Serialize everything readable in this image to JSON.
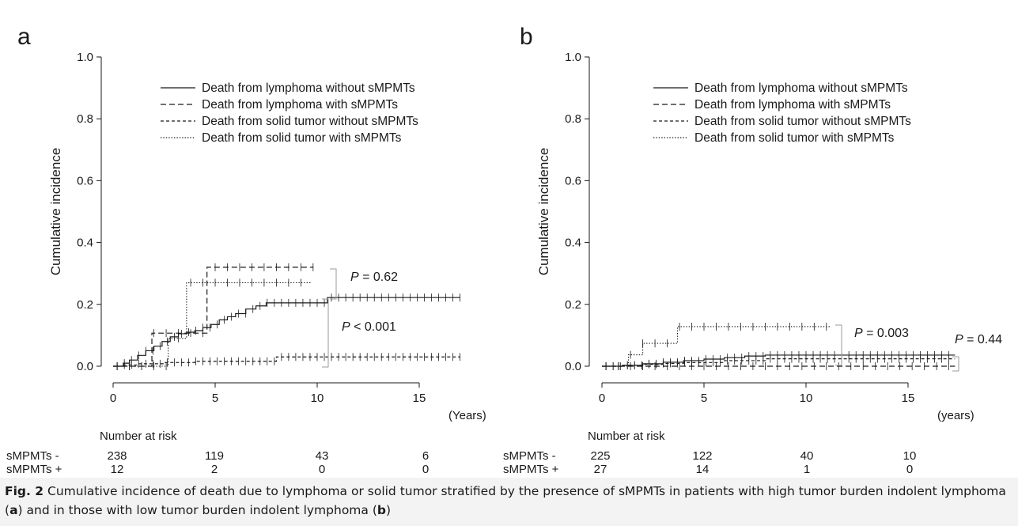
{
  "figure": {
    "caption_label": "Fig. 2",
    "caption_parts": [
      {
        "text": "Cumulative incidence of death due to lymphoma or solid tumor stratified by the presence of sMPMTs in patients with high tumor burden indolent lymphoma (",
        "bold": false
      },
      {
        "text": "a",
        "bold": true
      },
      {
        "text": ") and in those with low tumor burden indolent lymphoma (",
        "bold": false
      },
      {
        "text": "b",
        "bold": true
      },
      {
        "text": ")",
        "bold": false
      }
    ]
  },
  "chart_data": [
    {
      "type": "line",
      "panel_label": "a",
      "ylabel": "Cumulative incidence",
      "x_unit_label": "(Years)",
      "xlim": [
        0,
        17.5
      ],
      "ylim": [
        0,
        1.0
      ],
      "x_ticks": [
        "0",
        "5",
        "10",
        "15"
      ],
      "y_ticks": [
        "0.0",
        "0.2",
        "0.4",
        "0.6",
        "0.8",
        "1.0"
      ],
      "legend_position": "top-center",
      "series": [
        {
          "name": "Death from lymphoma without sMPMTs",
          "style": "solid",
          "x": [
            0,
            0.5,
            0.8,
            1.2,
            1.6,
            2.0,
            2.4,
            2.8,
            3.2,
            3.6,
            4.0,
            4.4,
            4.8,
            5.2,
            5.6,
            6.0,
            6.5,
            7.0,
            7.5,
            8.0,
            8.5,
            9.0,
            9.5,
            10.0,
            10.5,
            17.0
          ],
          "y": [
            0,
            0.01,
            0.02,
            0.035,
            0.05,
            0.065,
            0.08,
            0.095,
            0.105,
            0.11,
            0.115,
            0.125,
            0.135,
            0.15,
            0.16,
            0.17,
            0.185,
            0.195,
            0.205,
            0.205,
            0.205,
            0.205,
            0.205,
            0.205,
            0.222,
            0.222
          ]
        },
        {
          "name": "Death from lymphoma with sMPMTs",
          "style": "dash",
          "x": [
            0,
            1.9,
            1.9,
            4.6,
            4.6,
            9.8
          ],
          "y": [
            0,
            0,
            0.107,
            0.107,
            0.32,
            0.32
          ]
        },
        {
          "name": "Death from solid tumor without sMPMTs",
          "style": "shortdash",
          "x": [
            0,
            0.5,
            1.2,
            2.5,
            4.0,
            8.0,
            8.0,
            17.0
          ],
          "y": [
            0,
            0.004,
            0.008,
            0.012,
            0.016,
            0.02,
            0.03,
            0.03
          ]
        },
        {
          "name": "Death from solid tumor with sMPMTs",
          "style": "dot",
          "x": [
            0,
            2.7,
            2.7,
            3.6,
            3.6,
            9.7
          ],
          "y": [
            0,
            0,
            0.09,
            0.09,
            0.27,
            0.27
          ]
        }
      ],
      "annotations": [
        {
          "p_prefix": "P",
          "p_rest": " = 0.62"
        },
        {
          "p_prefix": "P",
          "p_rest": " < 0.001"
        }
      ],
      "risk_table": {
        "title": "Number at risk",
        "rows": [
          {
            "label": "sMPMTs -",
            "values": [
              "238",
              "119",
              "43",
              "6"
            ]
          },
          {
            "label": "sMPMTs +",
            "values": [
              "12",
              "2",
              "0",
              "0"
            ]
          }
        ]
      }
    },
    {
      "type": "line",
      "panel_label": "b",
      "ylabel": "Cumulative incidence",
      "x_unit_label": "(years)",
      "xlim": [
        0,
        17.5
      ],
      "ylim": [
        0,
        1.0
      ],
      "x_ticks": [
        "0",
        "5",
        "10",
        "15"
      ],
      "y_ticks": [
        "0.0",
        "0.2",
        "0.4",
        "0.6",
        "0.8",
        "1.0"
      ],
      "legend_position": "top-center",
      "series": [
        {
          "name": "Death from lymphoma without sMPMTs",
          "style": "solid",
          "x": [
            0,
            1.0,
            2.0,
            3.0,
            4.0,
            5.0,
            6.0,
            7.0,
            8.0,
            17.3
          ],
          "y": [
            0,
            0.003,
            0.008,
            0.013,
            0.018,
            0.023,
            0.028,
            0.033,
            0.036,
            0.036
          ]
        },
        {
          "name": "Death from lymphoma with sMPMTs",
          "style": "dash",
          "x": [
            0,
            17.3
          ],
          "y": [
            0,
            0
          ]
        },
        {
          "name": "Death from solid tumor without sMPMTs",
          "style": "shortdash",
          "x": [
            0,
            1.0,
            2.0,
            3.0,
            4.0,
            6.0,
            8.0,
            17.3
          ],
          "y": [
            0,
            0.003,
            0.006,
            0.009,
            0.012,
            0.018,
            0.024,
            0.024
          ]
        },
        {
          "name": "Death from solid tumor with sMPMTs",
          "style": "dot",
          "x": [
            0,
            1.3,
            1.3,
            2.0,
            2.0,
            3.7,
            3.7,
            11.2
          ],
          "y": [
            0,
            0,
            0.037,
            0.037,
            0.074,
            0.074,
            0.128,
            0.128
          ]
        }
      ],
      "annotations": [
        {
          "p_prefix": "P",
          "p_rest": " = 0.003"
        },
        {
          "p_prefix": "P",
          "p_rest": " = 0.44"
        }
      ],
      "risk_table": {
        "title": "Number at risk",
        "rows": [
          {
            "label": "sMPMTs -",
            "values": [
              "225",
              "122",
              "40",
              "10"
            ]
          },
          {
            "label": "sMPMTs +",
            "values": [
              "27",
              "14",
              "1",
              "0"
            ]
          }
        ]
      }
    }
  ]
}
